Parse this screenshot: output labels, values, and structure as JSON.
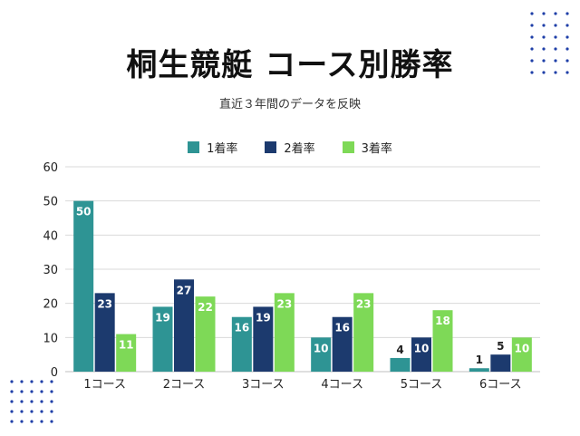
{
  "title": "桐生競艇 コース別勝率",
  "subtitle": "直近３年間のデータを反映",
  "colors": {
    "series1": "#2e9494",
    "series2": "#1c3a6e",
    "series3": "#7ed957",
    "grid": "#d9d9d9",
    "dots": "#1f3fa8"
  },
  "chart_data": {
    "type": "bar",
    "categories": [
      "1コース",
      "2コース",
      "3コース",
      "4コース",
      "5コース",
      "6コース"
    ],
    "series": [
      {
        "name": "1着率",
        "values": [
          50,
          19,
          16,
          10,
          4,
          1
        ]
      },
      {
        "name": "2着率",
        "values": [
          23,
          27,
          19,
          16,
          10,
          5
        ]
      },
      {
        "name": "3着率",
        "values": [
          11,
          22,
          23,
          23,
          18,
          10
        ]
      }
    ],
    "ylim": [
      0,
      60
    ],
    "yticks": [
      0,
      10,
      20,
      30,
      40,
      50,
      60
    ],
    "grid": true,
    "legend": "top"
  }
}
